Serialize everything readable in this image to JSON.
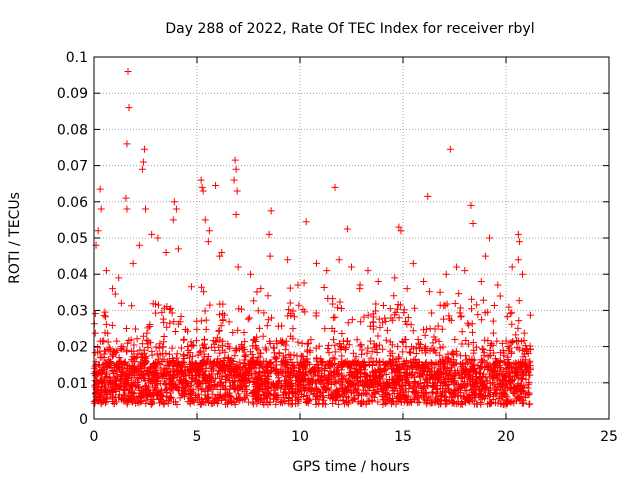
{
  "chart_data": {
    "type": "scatter",
    "title": "Day 288 of 2022, Rate Of TEC Index for receiver rbyl",
    "xlabel": "GPS time / hours",
    "ylabel": "ROTI / TECUs",
    "xlim": [
      0,
      25
    ],
    "ylim": [
      0,
      0.1
    ],
    "x_ticks": [
      "0",
      "5",
      "10",
      "15",
      "20",
      "25"
    ],
    "y_ticks": [
      "0",
      "0.01",
      "0.02",
      "0.03",
      "0.04",
      "0.05",
      "0.06",
      "0.07",
      "0.08",
      "0.09",
      "0.1"
    ],
    "grid": true,
    "marker": "+",
    "marker_color": "#ff0000",
    "data_x_range": [
      0,
      21.2
    ],
    "series": [
      {
        "points": [
          [
            1.65,
            0.096
          ],
          [
            1.7,
            0.086
          ],
          [
            1.6,
            0.076
          ],
          [
            2.45,
            0.0745
          ],
          [
            2.4,
            0.071
          ],
          [
            2.35,
            0.069
          ],
          [
            6.85,
            0.0715
          ],
          [
            6.9,
            0.069
          ],
          [
            6.8,
            0.066
          ],
          [
            6.95,
            0.063
          ],
          [
            5.2,
            0.066
          ],
          [
            5.25,
            0.064
          ],
          [
            5.3,
            0.063
          ],
          [
            5.9,
            0.0645
          ],
          [
            6.9,
            0.0565
          ],
          [
            11.7,
            0.064
          ],
          [
            17.3,
            0.0745
          ],
          [
            16.2,
            0.0615
          ],
          [
            18.3,
            0.059
          ],
          [
            0.3,
            0.0635
          ],
          [
            0.35,
            0.058
          ],
          [
            0.2,
            0.052
          ],
          [
            0.1,
            0.048
          ],
          [
            1.55,
            0.061
          ],
          [
            1.6,
            0.058
          ],
          [
            2.5,
            0.058
          ],
          [
            3.9,
            0.06
          ],
          [
            4.0,
            0.058
          ],
          [
            3.85,
            0.055
          ],
          [
            5.4,
            0.055
          ],
          [
            5.6,
            0.052
          ],
          [
            5.55,
            0.049
          ],
          [
            8.6,
            0.0575
          ],
          [
            8.5,
            0.051
          ],
          [
            8.55,
            0.045
          ],
          [
            10.3,
            0.0545
          ],
          [
            12.3,
            0.0525
          ],
          [
            14.8,
            0.053
          ],
          [
            14.9,
            0.052
          ],
          [
            18.4,
            0.054
          ],
          [
            19.2,
            0.05
          ],
          [
            19.0,
            0.045
          ],
          [
            20.6,
            0.051
          ],
          [
            20.65,
            0.049
          ],
          [
            20.6,
            0.044
          ],
          [
            2.8,
            0.051
          ],
          [
            3.1,
            0.05
          ],
          [
            2.2,
            0.048
          ],
          [
            1.9,
            0.043
          ],
          [
            3.5,
            0.046
          ],
          [
            4.1,
            0.047
          ],
          [
            6.1,
            0.045
          ],
          [
            6.2,
            0.046
          ],
          [
            7.0,
            0.042
          ],
          [
            7.6,
            0.04
          ],
          [
            9.4,
            0.044
          ],
          [
            10.8,
            0.043
          ],
          [
            11.3,
            0.041
          ],
          [
            11.9,
            0.044
          ],
          [
            12.5,
            0.042
          ],
          [
            13.3,
            0.041
          ],
          [
            13.8,
            0.038
          ],
          [
            14.6,
            0.039
          ],
          [
            15.5,
            0.043
          ],
          [
            16.0,
            0.038
          ],
          [
            17.1,
            0.04
          ],
          [
            17.6,
            0.042
          ],
          [
            18.0,
            0.041
          ],
          [
            18.8,
            0.038
          ],
          [
            19.6,
            0.037
          ],
          [
            20.3,
            0.042
          ],
          [
            20.8,
            0.04
          ],
          [
            0.6,
            0.041
          ],
          [
            1.2,
            0.039
          ],
          [
            0.9,
            0.036
          ],
          [
            16.8,
            0.035
          ],
          [
            15.2,
            0.036
          ],
          [
            9.9,
            0.037
          ],
          [
            8.1,
            0.036
          ],
          [
            12.9,
            0.036
          ]
        ]
      }
    ]
  }
}
